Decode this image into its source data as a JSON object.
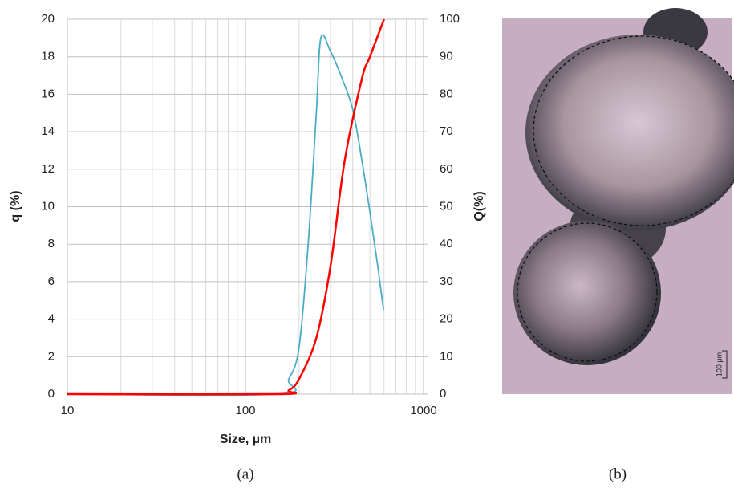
{
  "chart_data": {
    "type": "line",
    "xlabel": "Size, µm",
    "ylabel": "q (%)",
    "y2label": "Q(%)",
    "log_x": true,
    "grid": true,
    "xlim": [
      10,
      1000
    ],
    "xticks": [
      10,
      100,
      1000
    ],
    "xgrid_minor": [
      20,
      30,
      40,
      50,
      60,
      70,
      80,
      90,
      200,
      300,
      400,
      500,
      600,
      700,
      800,
      900
    ],
    "ylim": [
      0,
      20
    ],
    "yticks": [
      0,
      2,
      4,
      6,
      8,
      10,
      12,
      14,
      16,
      18,
      20
    ],
    "y2lim": [
      0,
      100
    ],
    "y2ticks": [
      0,
      10,
      20,
      30,
      40,
      50,
      60,
      70,
      80,
      90,
      100
    ],
    "series": [
      {
        "name": "q",
        "color": "#4bacc6",
        "x": [
          10,
          150,
          175,
          200,
          225,
          250,
          265,
          300,
          350,
          400,
          450,
          500,
          550,
          596
        ],
        "values": [
          0,
          0,
          0.8,
          2.5,
          8,
          15,
          19,
          18.3,
          16.8,
          15.2,
          12.5,
          9.7,
          7,
          4.5
        ]
      },
      {
        "name": "Q",
        "color": "#ff0000",
        "axis": "y2",
        "x": [
          10,
          150,
          175,
          200,
          250,
          300,
          360,
          450,
          500,
          600
        ],
        "values": [
          0,
          0,
          1,
          4,
          15,
          34,
          62,
          84,
          90,
          100
        ]
      }
    ]
  },
  "captions": [
    "(a)",
    "(b)"
  ],
  "image": {
    "scale_bar": "100 µm"
  }
}
